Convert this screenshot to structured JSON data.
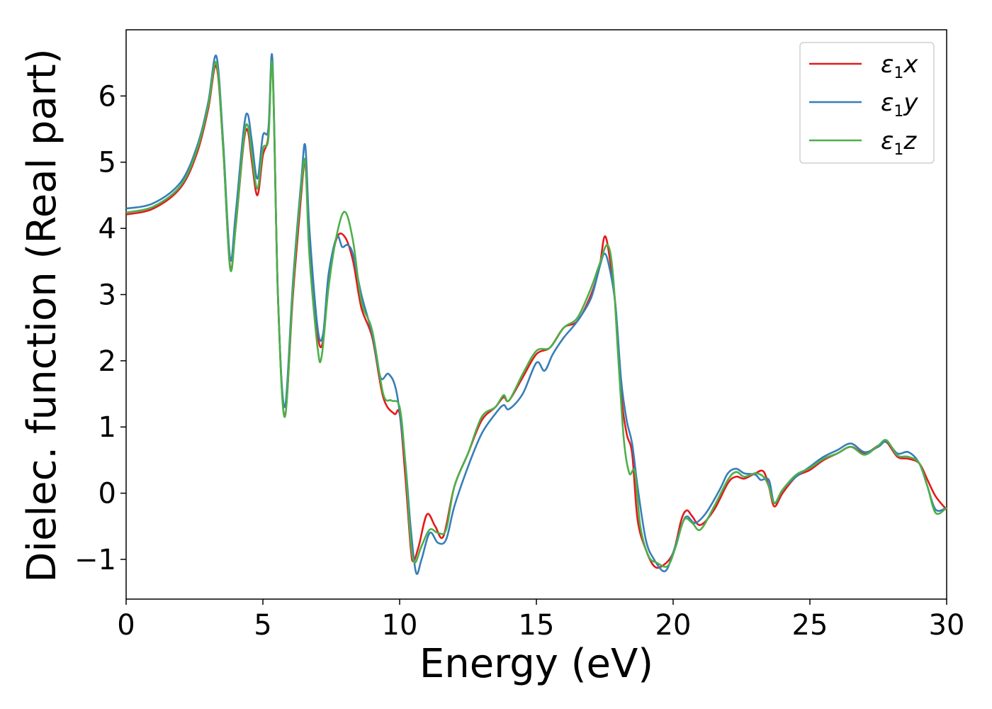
{
  "chart_data": {
    "type": "line",
    "title": "",
    "xlabel": "Energy (eV)",
    "ylabel": "Dielec. function (Real part)",
    "xlim": [
      0,
      30
    ],
    "ylim": [
      -1.6,
      7.0
    ],
    "x_ticks": [
      0,
      5,
      10,
      15,
      20,
      25,
      30
    ],
    "y_ticks": [
      -1,
      0,
      1,
      2,
      3,
      4,
      5,
      6
    ],
    "y_tick_labels": [
      "−1",
      "0",
      "1",
      "2",
      "3",
      "4",
      "5",
      "6"
    ],
    "grid": false,
    "legend_position": "top-right",
    "series": [
      {
        "legend_label": {
          "base": "ε",
          "sub": "1",
          "suffix": "x"
        },
        "color": "#e41a1c",
        "points": [
          [
            0,
            4.21
          ],
          [
            1,
            4.3
          ],
          [
            2,
            4.62
          ],
          [
            2.6,
            5.15
          ],
          [
            3.0,
            5.8
          ],
          [
            3.3,
            6.45
          ],
          [
            3.55,
            5.2
          ],
          [
            3.8,
            3.42
          ],
          [
            4.0,
            4.0
          ],
          [
            4.3,
            5.3
          ],
          [
            4.45,
            5.47
          ],
          [
            4.6,
            5.0
          ],
          [
            4.8,
            4.5
          ],
          [
            5.0,
            5.1
          ],
          [
            5.2,
            5.4
          ],
          [
            5.35,
            6.45
          ],
          [
            5.55,
            3.0
          ],
          [
            5.8,
            1.2
          ],
          [
            6.1,
            3.0
          ],
          [
            6.4,
            4.5
          ],
          [
            6.55,
            4.98
          ],
          [
            6.7,
            3.8
          ],
          [
            7.0,
            2.4
          ],
          [
            7.2,
            2.3
          ],
          [
            7.4,
            3.2
          ],
          [
            7.7,
            3.85
          ],
          [
            8.0,
            3.87
          ],
          [
            8.3,
            3.5
          ],
          [
            8.6,
            2.8
          ],
          [
            9.0,
            2.35
          ],
          [
            9.4,
            1.45
          ],
          [
            9.8,
            1.2
          ],
          [
            10.0,
            1.2
          ],
          [
            10.2,
            0.3
          ],
          [
            10.4,
            -0.8
          ],
          [
            10.5,
            -1.03
          ],
          [
            10.7,
            -0.8
          ],
          [
            11.0,
            -0.32
          ],
          [
            11.3,
            -0.5
          ],
          [
            11.6,
            -0.65
          ],
          [
            12.0,
            0.1
          ],
          [
            12.5,
            0.6
          ],
          [
            13.0,
            1.1
          ],
          [
            13.5,
            1.3
          ],
          [
            13.8,
            1.45
          ],
          [
            14.0,
            1.4
          ],
          [
            14.5,
            1.75
          ],
          [
            15.0,
            2.1
          ],
          [
            15.5,
            2.2
          ],
          [
            16.0,
            2.5
          ],
          [
            16.5,
            2.6
          ],
          [
            17.0,
            3.0
          ],
          [
            17.3,
            3.4
          ],
          [
            17.5,
            3.88
          ],
          [
            17.7,
            3.5
          ],
          [
            17.9,
            2.8
          ],
          [
            18.1,
            1.5
          ],
          [
            18.3,
            0.9
          ],
          [
            18.5,
            0.6
          ],
          [
            18.7,
            -0.4
          ],
          [
            19.0,
            -0.85
          ],
          [
            19.3,
            -1.1
          ],
          [
            19.6,
            -1.1
          ],
          [
            20.0,
            -0.9
          ],
          [
            20.3,
            -0.4
          ],
          [
            20.5,
            -0.26
          ],
          [
            20.7,
            -0.35
          ],
          [
            21.0,
            -0.48
          ],
          [
            21.5,
            -0.25
          ],
          [
            22.0,
            0.15
          ],
          [
            22.3,
            0.25
          ],
          [
            22.6,
            0.22
          ],
          [
            23.0,
            0.3
          ],
          [
            23.3,
            0.33
          ],
          [
            23.5,
            0.1
          ],
          [
            23.7,
            -0.2
          ],
          [
            24.0,
            0.0
          ],
          [
            24.5,
            0.25
          ],
          [
            25.0,
            0.35
          ],
          [
            25.5,
            0.5
          ],
          [
            26.0,
            0.6
          ],
          [
            26.5,
            0.7
          ],
          [
            27.0,
            0.6
          ],
          [
            27.5,
            0.72
          ],
          [
            27.8,
            0.77
          ],
          [
            28.2,
            0.55
          ],
          [
            28.6,
            0.52
          ],
          [
            29.0,
            0.45
          ],
          [
            29.3,
            0.2
          ],
          [
            29.6,
            -0.05
          ],
          [
            30.0,
            -0.25
          ]
        ]
      },
      {
        "legend_label": {
          "base": "ε",
          "sub": "1",
          "suffix": "y"
        },
        "color": "#377eb8",
        "points": [
          [
            0,
            4.3
          ],
          [
            1,
            4.38
          ],
          [
            2,
            4.7
          ],
          [
            2.6,
            5.25
          ],
          [
            3.0,
            5.9
          ],
          [
            3.3,
            6.6
          ],
          [
            3.55,
            5.3
          ],
          [
            3.8,
            3.55
          ],
          [
            4.0,
            4.2
          ],
          [
            4.3,
            5.5
          ],
          [
            4.45,
            5.72
          ],
          [
            4.6,
            5.3
          ],
          [
            4.8,
            4.75
          ],
          [
            5.0,
            5.4
          ],
          [
            5.2,
            5.5
          ],
          [
            5.35,
            6.55
          ],
          [
            5.55,
            3.0
          ],
          [
            5.8,
            1.3
          ],
          [
            6.1,
            3.2
          ],
          [
            6.4,
            4.7
          ],
          [
            6.55,
            5.25
          ],
          [
            6.7,
            4.0
          ],
          [
            7.0,
            2.5
          ],
          [
            7.2,
            2.4
          ],
          [
            7.4,
            3.3
          ],
          [
            7.7,
            3.87
          ],
          [
            7.9,
            3.72
          ],
          [
            8.1,
            3.75
          ],
          [
            8.3,
            3.6
          ],
          [
            8.6,
            3.0
          ],
          [
            9.0,
            2.4
          ],
          [
            9.3,
            1.75
          ],
          [
            9.6,
            1.8
          ],
          [
            9.9,
            1.5
          ],
          [
            10.2,
            0.5
          ],
          [
            10.4,
            -0.5
          ],
          [
            10.6,
            -1.2
          ],
          [
            10.8,
            -1.0
          ],
          [
            11.1,
            -0.6
          ],
          [
            11.4,
            -0.75
          ],
          [
            11.7,
            -0.7
          ],
          [
            12.0,
            -0.2
          ],
          [
            12.5,
            0.4
          ],
          [
            13.0,
            0.9
          ],
          [
            13.5,
            1.2
          ],
          [
            13.8,
            1.33
          ],
          [
            14.0,
            1.27
          ],
          [
            14.5,
            1.5
          ],
          [
            15.0,
            1.97
          ],
          [
            15.3,
            1.85
          ],
          [
            15.6,
            2.1
          ],
          [
            16.0,
            2.35
          ],
          [
            16.5,
            2.6
          ],
          [
            17.0,
            2.95
          ],
          [
            17.3,
            3.4
          ],
          [
            17.5,
            3.62
          ],
          [
            17.7,
            3.35
          ],
          [
            17.9,
            2.8
          ],
          [
            18.1,
            1.7
          ],
          [
            18.3,
            1.1
          ],
          [
            18.5,
            0.75
          ],
          [
            18.7,
            0.1
          ],
          [
            19.0,
            -0.7
          ],
          [
            19.3,
            -1.0
          ],
          [
            19.7,
            -1.18
          ],
          [
            20.0,
            -0.9
          ],
          [
            20.3,
            -0.5
          ],
          [
            20.5,
            -0.35
          ],
          [
            20.8,
            -0.45
          ],
          [
            21.2,
            -0.3
          ],
          [
            21.7,
            0.05
          ],
          [
            22.0,
            0.3
          ],
          [
            22.3,
            0.37
          ],
          [
            22.6,
            0.3
          ],
          [
            23.0,
            0.28
          ],
          [
            23.2,
            0.2
          ],
          [
            23.5,
            0.2
          ],
          [
            23.7,
            -0.15
          ],
          [
            24.0,
            0.05
          ],
          [
            24.5,
            0.25
          ],
          [
            25.0,
            0.4
          ],
          [
            25.5,
            0.55
          ],
          [
            26.0,
            0.65
          ],
          [
            26.5,
            0.75
          ],
          [
            27.0,
            0.62
          ],
          [
            27.5,
            0.7
          ],
          [
            27.8,
            0.78
          ],
          [
            28.2,
            0.6
          ],
          [
            28.6,
            0.62
          ],
          [
            29.0,
            0.45
          ],
          [
            29.3,
            0.1
          ],
          [
            29.6,
            -0.25
          ],
          [
            30.0,
            -0.22
          ]
        ]
      },
      {
        "legend_label": {
          "base": "ε",
          "sub": "1",
          "suffix": "z"
        },
        "color": "#4daf4a",
        "points": [
          [
            0,
            4.24
          ],
          [
            1,
            4.33
          ],
          [
            2,
            4.65
          ],
          [
            2.6,
            5.2
          ],
          [
            3.0,
            5.85
          ],
          [
            3.3,
            6.5
          ],
          [
            3.55,
            5.2
          ],
          [
            3.8,
            3.4
          ],
          [
            4.0,
            4.0
          ],
          [
            4.3,
            5.35
          ],
          [
            4.45,
            5.55
          ],
          [
            4.6,
            5.1
          ],
          [
            4.8,
            4.6
          ],
          [
            5.0,
            5.2
          ],
          [
            5.2,
            5.35
          ],
          [
            5.35,
            6.45
          ],
          [
            5.55,
            3.0
          ],
          [
            5.8,
            1.15
          ],
          [
            6.1,
            3.1
          ],
          [
            6.4,
            4.6
          ],
          [
            6.55,
            5.0
          ],
          [
            6.7,
            3.6
          ],
          [
            7.0,
            2.2
          ],
          [
            7.15,
            2.07
          ],
          [
            7.4,
            3.1
          ],
          [
            7.7,
            3.9
          ],
          [
            8.0,
            4.25
          ],
          [
            8.3,
            3.8
          ],
          [
            8.6,
            2.9
          ],
          [
            9.0,
            2.45
          ],
          [
            9.4,
            1.5
          ],
          [
            9.7,
            1.4
          ],
          [
            10.0,
            1.3
          ],
          [
            10.2,
            0.5
          ],
          [
            10.4,
            -0.7
          ],
          [
            10.55,
            -1.05
          ],
          [
            10.8,
            -0.8
          ],
          [
            11.1,
            -0.55
          ],
          [
            11.4,
            -0.6
          ],
          [
            11.7,
            -0.55
          ],
          [
            12.0,
            0.1
          ],
          [
            12.5,
            0.6
          ],
          [
            13.0,
            1.15
          ],
          [
            13.5,
            1.3
          ],
          [
            13.8,
            1.48
          ],
          [
            14.0,
            1.4
          ],
          [
            14.5,
            1.8
          ],
          [
            15.0,
            2.15
          ],
          [
            15.5,
            2.2
          ],
          [
            16.0,
            2.5
          ],
          [
            16.5,
            2.65
          ],
          [
            17.0,
            3.1
          ],
          [
            17.3,
            3.45
          ],
          [
            17.6,
            3.75
          ],
          [
            17.8,
            3.3
          ],
          [
            18.0,
            2.0
          ],
          [
            18.2,
            0.8
          ],
          [
            18.4,
            0.3
          ],
          [
            18.6,
            0.32
          ],
          [
            18.8,
            -0.5
          ],
          [
            19.1,
            -0.95
          ],
          [
            19.4,
            -1.05
          ],
          [
            19.8,
            -1.1
          ],
          [
            20.1,
            -0.8
          ],
          [
            20.4,
            -0.4
          ],
          [
            20.7,
            -0.45
          ],
          [
            21.0,
            -0.55
          ],
          [
            21.5,
            -0.2
          ],
          [
            22.0,
            0.2
          ],
          [
            22.3,
            0.32
          ],
          [
            22.6,
            0.25
          ],
          [
            23.0,
            0.3
          ],
          [
            23.3,
            0.25
          ],
          [
            23.5,
            0.1
          ],
          [
            23.7,
            -0.15
          ],
          [
            24.0,
            0.05
          ],
          [
            24.5,
            0.28
          ],
          [
            25.0,
            0.38
          ],
          [
            25.5,
            0.52
          ],
          [
            26.0,
            0.6
          ],
          [
            26.5,
            0.7
          ],
          [
            27.0,
            0.58
          ],
          [
            27.5,
            0.72
          ],
          [
            27.8,
            0.8
          ],
          [
            28.2,
            0.57
          ],
          [
            28.6,
            0.55
          ],
          [
            29.0,
            0.45
          ],
          [
            29.3,
            0.1
          ],
          [
            29.6,
            -0.3
          ],
          [
            30.0,
            -0.22
          ]
        ]
      }
    ]
  }
}
